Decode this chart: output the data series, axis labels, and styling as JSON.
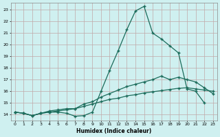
{
  "xlabel": "Humidex (Indice chaleur)",
  "bg_color": "#cff0f0",
  "grid_color": "#c0a8a8",
  "line_color": "#1a6b5a",
  "xlim": [
    -0.5,
    23.5
  ],
  "ylim": [
    13.5,
    23.6
  ],
  "xticks": [
    0,
    1,
    2,
    3,
    4,
    5,
    6,
    7,
    8,
    9,
    10,
    11,
    12,
    13,
    14,
    15,
    16,
    17,
    18,
    19,
    20,
    21,
    22,
    23
  ],
  "yticks": [
    14,
    15,
    16,
    17,
    18,
    19,
    20,
    21,
    22,
    23
  ],
  "line1_x": [
    0,
    1,
    2,
    3,
    4,
    5,
    6,
    7,
    8,
    9,
    10,
    11,
    12,
    13,
    14,
    15,
    16,
    17,
    18,
    19,
    20,
    21,
    22
  ],
  "line1_y": [
    14.2,
    14.1,
    13.9,
    14.1,
    14.2,
    14.2,
    14.1,
    13.85,
    13.9,
    14.2,
    16.0,
    17.8,
    19.5,
    21.3,
    22.9,
    23.3,
    21.0,
    20.5,
    19.9,
    19.3,
    16.2,
    16.0,
    15.0
  ],
  "line2_x": [
    0,
    1,
    2,
    3,
    4,
    5,
    6,
    7,
    8,
    9,
    10,
    11,
    12,
    13,
    14,
    15,
    16,
    17,
    18,
    19,
    20,
    21,
    22,
    23
  ],
  "line2_y": [
    14.2,
    14.1,
    13.9,
    14.1,
    14.3,
    14.4,
    14.5,
    14.5,
    14.9,
    15.1,
    15.5,
    15.8,
    16.1,
    16.4,
    16.6,
    16.8,
    17.0,
    17.3,
    17.0,
    17.2,
    17.0,
    16.8,
    16.3,
    15.8
  ],
  "line3_x": [
    0,
    1,
    2,
    3,
    4,
    5,
    6,
    7,
    8,
    9,
    10,
    11,
    12,
    13,
    14,
    15,
    16,
    17,
    18,
    19,
    20,
    21,
    22,
    23
  ],
  "line3_y": [
    14.2,
    14.1,
    13.9,
    14.1,
    14.2,
    14.3,
    14.4,
    14.5,
    14.7,
    14.9,
    15.1,
    15.3,
    15.4,
    15.6,
    15.7,
    15.85,
    15.95,
    16.05,
    16.15,
    16.25,
    16.3,
    16.2,
    16.1,
    16.0
  ]
}
